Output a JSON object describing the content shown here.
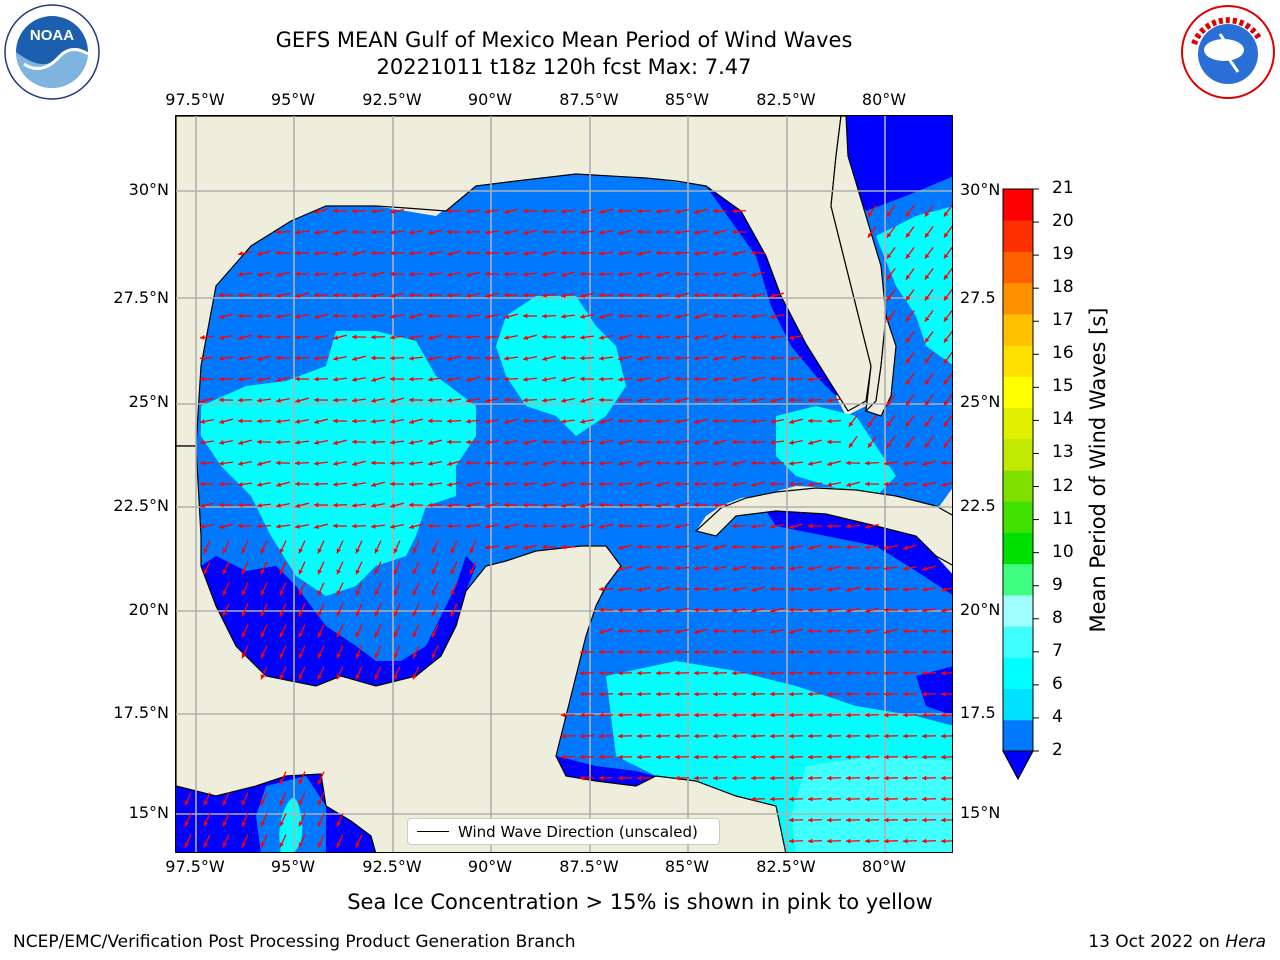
{
  "header": {
    "title_line1": "GEFS MEAN Gulf of Mexico Mean Period of Wind Waves",
    "title_line2": "20221011 t18z 120h fcst   Max: 7.47"
  },
  "map": {
    "lon_ticks": [
      "97.5°W",
      "95°W",
      "92.5°W",
      "90°W",
      "87.5°W",
      "85°W",
      "82.5°W",
      "80°W"
    ],
    "lat_ticks_left": [
      "30°N",
      "27.5°N",
      "25°N",
      "22.5°N",
      "20°N",
      "17.5°N",
      "15°N"
    ],
    "lat_ticks_right": [
      "30°N",
      "27.5",
      "25°N",
      "22.5",
      "20°N",
      "17.5",
      "15°N"
    ],
    "extent": {
      "lon_min": -98.0,
      "lon_max": -78.3,
      "lat_min": 14.0,
      "lat_max": 31.8
    },
    "land_color": "#efeedd",
    "arrow_color": "#ff0000",
    "legend_label": "Wind Wave Direction (unscaled)"
  },
  "colorbar": {
    "label": "Mean Period of Wind Waves [s]",
    "ticks": [
      "21",
      "20",
      "19",
      "18",
      "17",
      "16",
      "15",
      "14",
      "13",
      "12",
      "11",
      "10",
      "9",
      "8",
      "7",
      "6",
      "4",
      "2"
    ],
    "under_color": "#0000ff",
    "colors": [
      "#0079ff",
      "#00e0ff",
      "#00ffff",
      "#40ffff",
      "#a0ffff",
      "#40ff80",
      "#00e000",
      "#40e000",
      "#80e000",
      "#c0e800",
      "#e0f000",
      "#ffff00",
      "#ffe000",
      "#ffc000",
      "#ff9000",
      "#ff6000",
      "#ff3000",
      "#ff0000"
    ]
  },
  "ice_note": "Sea Ice Concentration > 15% is shown in pink to yellow",
  "footer": {
    "left": "NCEP/EMC/Verification Post Processing Product Generation Branch",
    "right_date": "13 Oct 2022 on ",
    "right_machine": "Hera"
  },
  "logos": {
    "noaa_text": "NOAA",
    "nws_text": "NATIONAL WEATHER SERVICE"
  }
}
